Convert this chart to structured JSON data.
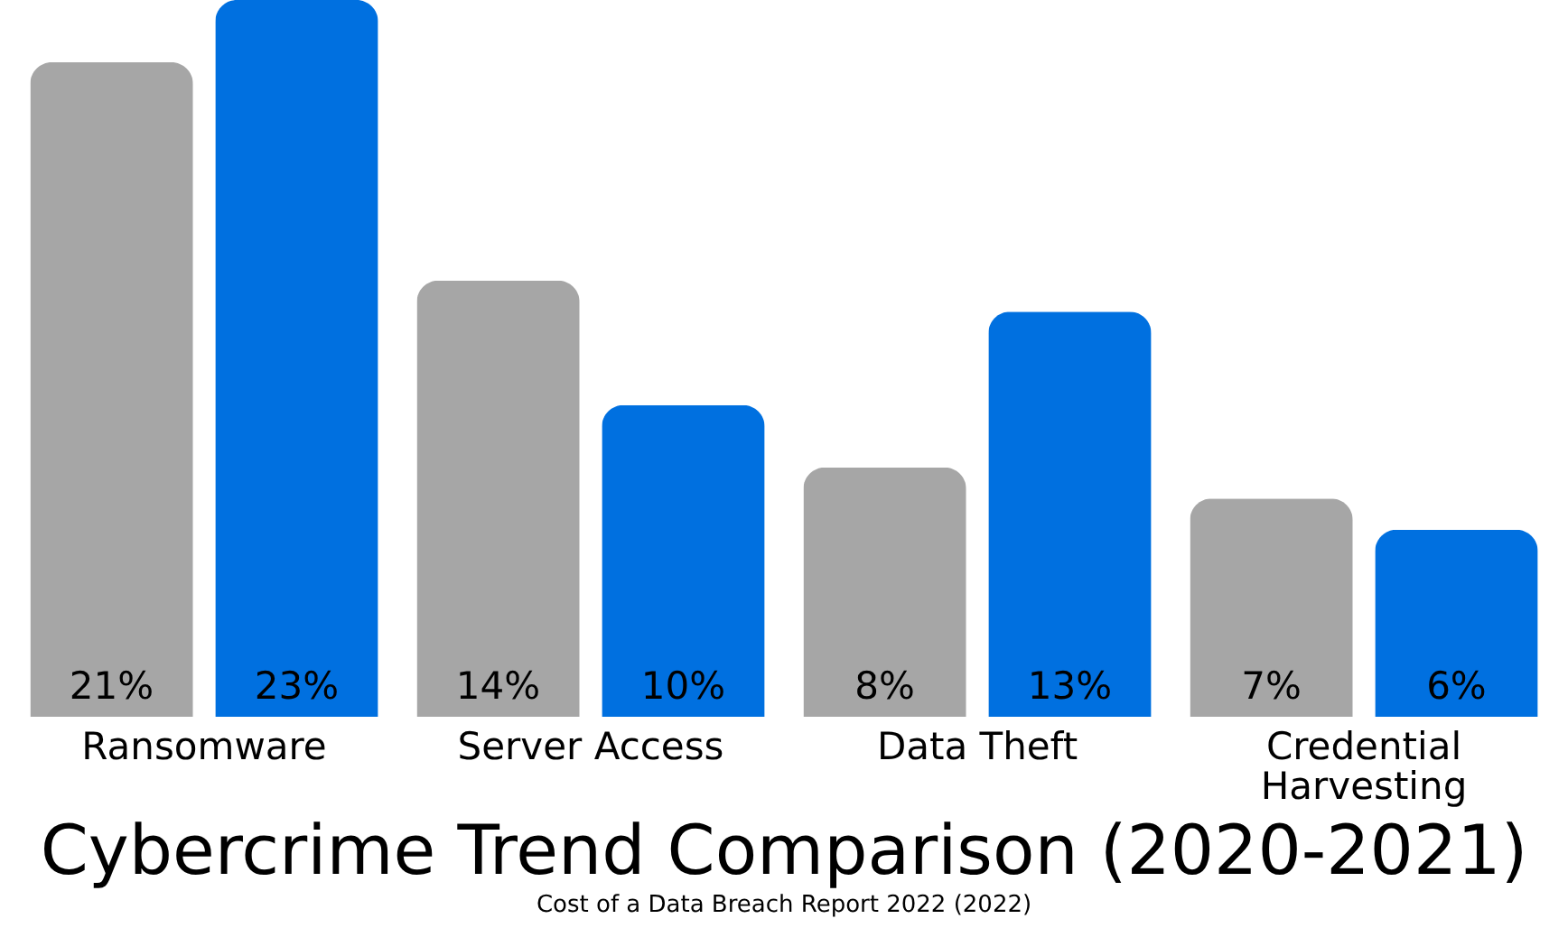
{
  "chart_data": {
    "type": "bar",
    "title": "Cybercrime Trend Comparison (2020-2021)",
    "annotations": [
      "Cost of a Data Breach Report 2022 (2022)"
    ],
    "categories": [
      "Ransomware",
      "Server Access",
      "Data Theft",
      "Credential Harvesting"
    ],
    "series": [
      {
        "color": "#a6a6a6",
        "values": [
          21,
          14,
          8,
          7
        ],
        "value_labels": [
          "21%",
          "14%",
          "8%",
          "7%"
        ]
      },
      {
        "color": "#0070e0",
        "values": [
          23,
          10,
          13,
          6
        ],
        "value_labels": [
          "23%",
          "10%",
          "13%",
          "6%"
        ]
      }
    ],
    "legend": false
  }
}
